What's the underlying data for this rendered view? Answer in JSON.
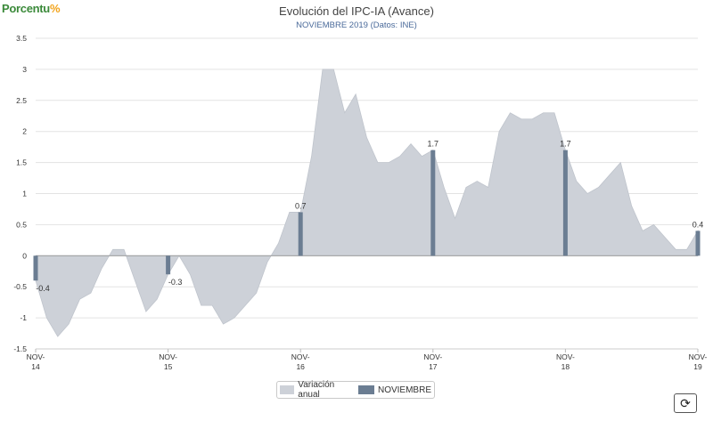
{
  "header": {
    "logo_text": "Porcentu",
    "logo_accent": "%",
    "title": "Evolución del IPC-IA (Avance)",
    "subtitle": "NOVIEMBRE 2019 (Datos: INE)"
  },
  "legend": {
    "area_label": "Variación anual",
    "bar_label": "NOVIEMBRE"
  },
  "controls": {
    "refresh_icon": "⟳"
  },
  "colors": {
    "area": "#cdd1d8",
    "area_edge": "#bfc4cc",
    "bar": "#6b7d92",
    "grid": "#e3e3e3"
  },
  "chart_data": {
    "type": "area",
    "title": "Evolución del IPC-IA (Avance)",
    "subtitle": "NOVIEMBRE 2019 (Datos: INE)",
    "ylim": [
      -1.5,
      3.5
    ],
    "yticks": [
      "3.5",
      "3",
      "2.5",
      "2",
      "1.5",
      "1",
      "0.5",
      "0",
      "-0.5",
      "-1",
      "-1.5"
    ],
    "yticks_values": [
      3.5,
      3,
      2.5,
      2,
      1.5,
      1,
      0.5,
      0,
      -0.5,
      -1,
      -1.5
    ],
    "xticks": [
      {
        "index": 0,
        "line1": "NOV-",
        "line2": "14"
      },
      {
        "index": 12,
        "line1": "NOV-",
        "line2": "15"
      },
      {
        "index": 24,
        "line1": "NOV-",
        "line2": "16"
      },
      {
        "index": 36,
        "line1": "NOV-",
        "line2": "17"
      },
      {
        "index": 48,
        "line1": "NOV-",
        "line2": "18"
      },
      {
        "index": 60,
        "line1": "NOV-",
        "line2": "19"
      }
    ],
    "grid": true,
    "legend_position": "bottom-center",
    "series": [
      {
        "name": "Variación anual",
        "type": "area",
        "values": [
          -0.4,
          -1.0,
          -1.3,
          -1.1,
          -0.7,
          -0.6,
          -0.2,
          0.1,
          0.1,
          -0.4,
          -0.9,
          -0.7,
          -0.3,
          0.0,
          -0.3,
          -0.8,
          -0.8,
          -1.1,
          -1.0,
          -0.8,
          -0.6,
          -0.1,
          0.2,
          0.7,
          0.7,
          1.6,
          3.0,
          3.0,
          2.3,
          2.6,
          1.9,
          1.5,
          1.5,
          1.6,
          1.8,
          1.6,
          1.7,
          1.1,
          0.6,
          1.1,
          1.2,
          1.1,
          2.0,
          2.3,
          2.2,
          2.2,
          2.3,
          2.3,
          1.7,
          1.2,
          1.0,
          1.1,
          1.3,
          1.5,
          0.8,
          0.4,
          0.5,
          0.3,
          0.1,
          0.1,
          0.4
        ]
      },
      {
        "name": "NOVIEMBRE",
        "type": "bar",
        "indices": [
          0,
          12,
          24,
          36,
          48,
          60
        ],
        "values": [
          -0.4,
          -0.3,
          0.7,
          1.7,
          1.7,
          0.4
        ],
        "labels": [
          "-0.4",
          "-0.3",
          "0.7",
          "1.7",
          "1.7",
          "0.4"
        ]
      }
    ]
  }
}
